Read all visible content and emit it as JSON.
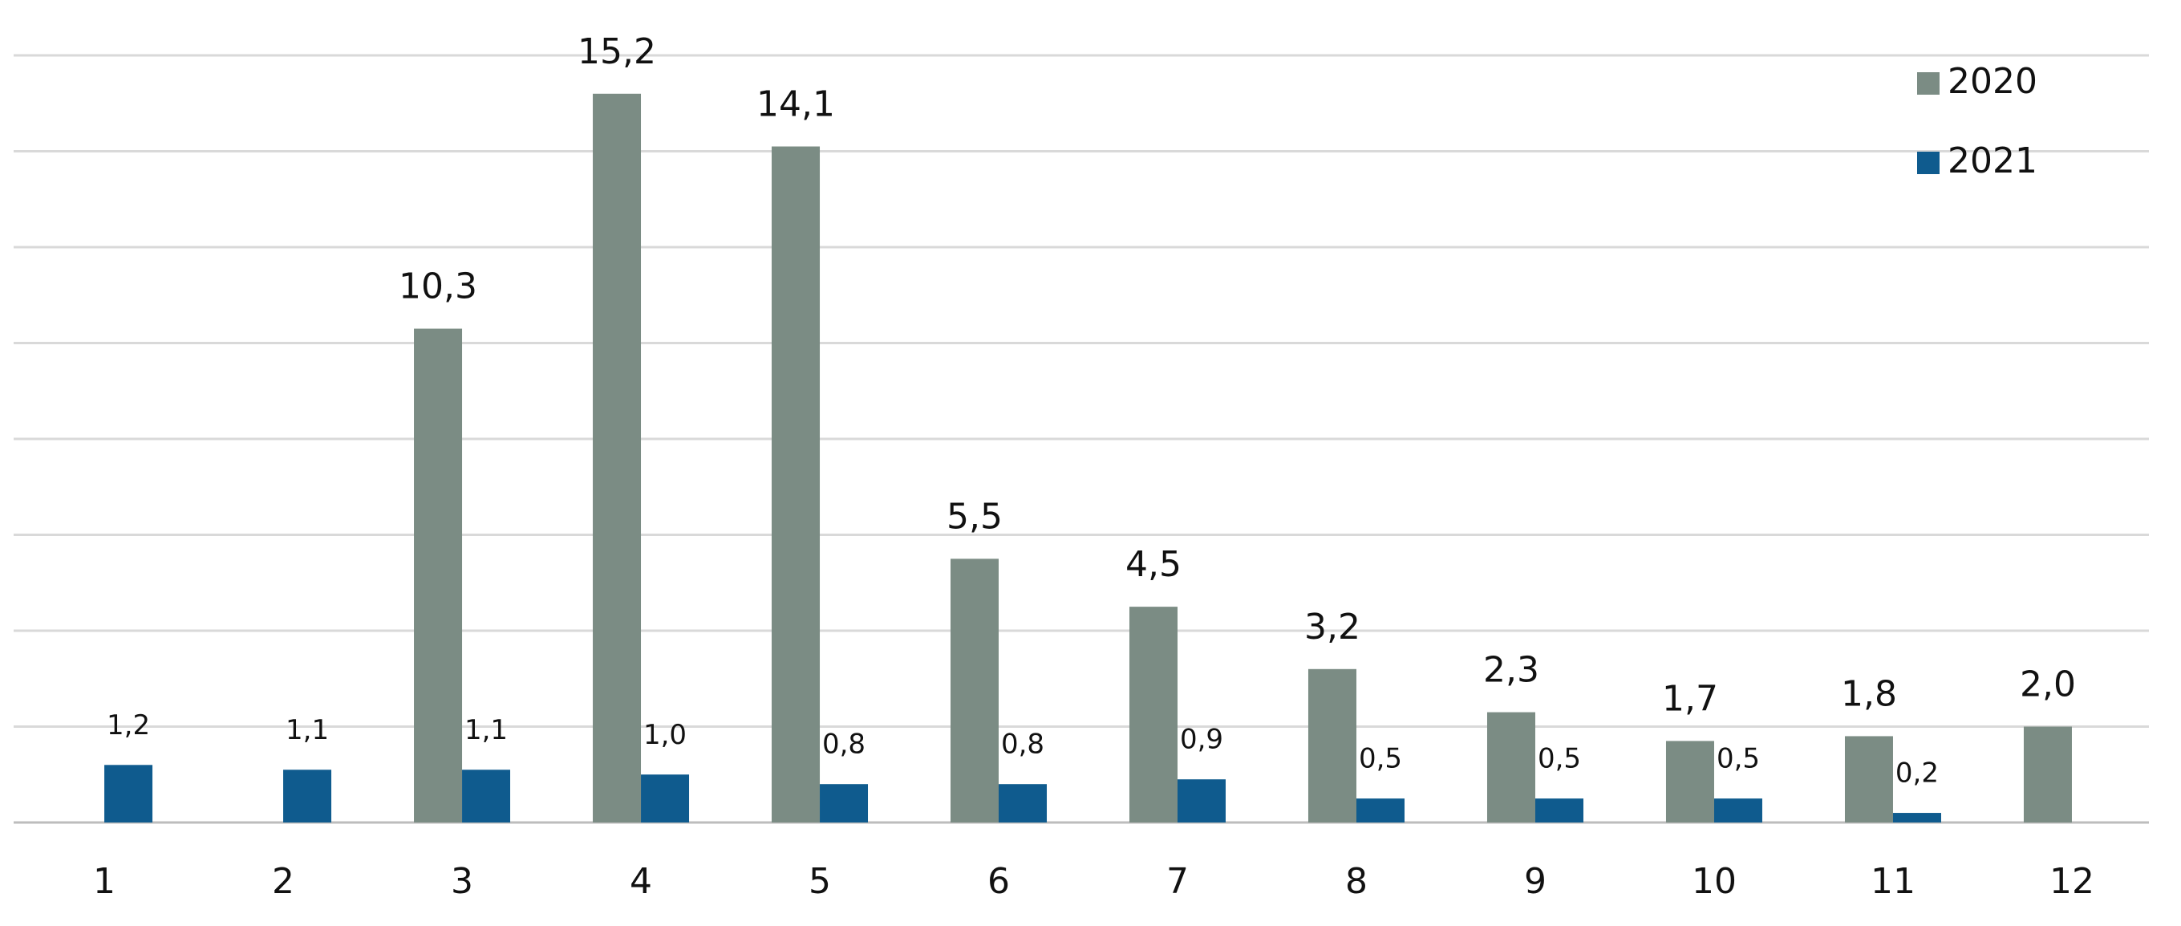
{
  "chart_data": {
    "type": "bar",
    "categories": [
      "1",
      "2",
      "3",
      "4",
      "5",
      "6",
      "7",
      "8",
      "9",
      "10",
      "11",
      "12"
    ],
    "series": [
      {
        "name": "2020",
        "color": "#7b8c84",
        "values": [
          null,
          null,
          10.3,
          15.2,
          14.1,
          5.5,
          4.5,
          3.2,
          2.3,
          1.7,
          1.8,
          2.0
        ],
        "value_labels": [
          null,
          null,
          "10,3",
          "15,2",
          "14,1",
          "5,5",
          "4,5",
          "3,2",
          "2,3",
          "1,7",
          "1,8",
          "2,0"
        ]
      },
      {
        "name": "2021",
        "color": "#0f5b8e",
        "values": [
          1.2,
          1.1,
          1.1,
          1.0,
          0.8,
          0.8,
          0.9,
          0.5,
          0.5,
          0.5,
          0.2,
          null
        ],
        "value_labels": [
          "1,2",
          "1,1",
          "1,1",
          "1,0",
          "0,8",
          "0,8",
          "0,9",
          "0,5",
          "0,5",
          "0,5",
          "0,2",
          null
        ]
      }
    ],
    "ylim": [
      0,
      16
    ],
    "yticks": [
      0,
      2,
      4,
      6,
      8,
      10,
      12,
      14,
      16
    ],
    "grid": true,
    "legend": "top-right"
  }
}
